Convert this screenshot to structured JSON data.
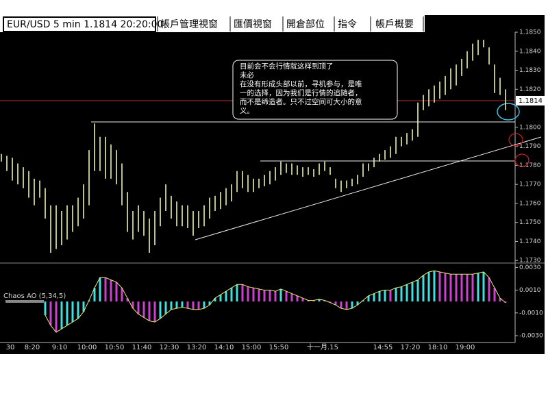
{
  "tabs": [
    "帳戶管理視窗",
    "匯價視窗",
    "開倉部位",
    "指令",
    "帳戶概要"
  ],
  "annotation": [
    "目前会不会行情就这样到顶了",
    "未必",
    "在没有形成头部以前，寻机参与，是唯",
    "一的选择，因为我们是行情的追随者，",
    "而不是缔造者。只不过空间可大小的意",
    "义。"
  ],
  "chart_data": [
    {
      "type": "hl",
      "title": "EUR/USD 5 min 1.1814 20:20:00",
      "color": "#f0f0a0",
      "categories": [
        null,
        "30",
        null,
        null,
        null,
        "8:20",
        null,
        null,
        null,
        null,
        "9:10",
        null,
        null,
        null,
        null,
        "10:00",
        null,
        null,
        null,
        null,
        "10:50",
        null,
        null,
        null,
        null,
        "11:40",
        null,
        null,
        null,
        null,
        "12:30",
        null,
        null,
        null,
        null,
        "13:20",
        null,
        null,
        null,
        null,
        "14:10",
        null,
        null,
        null,
        null,
        "15:00",
        null,
        null,
        null,
        null,
        "15:50",
        null,
        null,
        null,
        null,
        null,
        null,
        null,
        "十一月.15",
        null,
        null,
        null,
        null,
        null,
        null,
        null,
        null,
        null,
        null,
        "14:55",
        null,
        null,
        null,
        null,
        "17:20",
        null,
        null,
        null,
        null,
        "18:10",
        null,
        null,
        null,
        null,
        "19:00",
        null,
        null,
        null,
        null,
        null,
        null,
        null,
        null
      ],
      "high": [
        1.1786,
        1.1785,
        1.1784,
        1.1781,
        1.1779,
        1.1777,
        1.1773,
        1.1772,
        1.1768,
        1.1759,
        1.1759,
        1.1756,
        1.1759,
        1.1759,
        1.1763,
        1.177,
        1.1788,
        1.1802,
        1.1795,
        1.1795,
        1.1791,
        1.1788,
        1.1781,
        1.1766,
        1.1756,
        1.1759,
        1.1756,
        1.1752,
        1.1756,
        1.1763,
        1.177,
        1.1764,
        1.1761,
        1.1759,
        1.1759,
        1.1756,
        1.1756,
        1.1759,
        1.1763,
        1.1764,
        1.1766,
        1.1768,
        1.177,
        1.1777,
        1.1777,
        1.1775,
        1.1773,
        1.1773,
        1.1775,
        1.1777,
        1.1779,
        1.1782,
        1.1781,
        1.1781,
        1.178,
        1.1779,
        1.1779,
        1.1778,
        1.1781,
        1.1782,
        1.1779,
        1.1773,
        1.1772,
        1.1772,
        1.1773,
        1.1775,
        1.1781,
        1.1781,
        1.1784,
        1.1786,
        1.1788,
        1.179,
        1.1795,
        1.1795,
        1.1797,
        1.1799,
        1.1813,
        1.1817,
        1.182,
        1.1822,
        1.1824,
        1.1827,
        1.1831,
        1.1833,
        1.1836,
        1.184,
        1.1844,
        1.1846,
        1.1846,
        1.1842,
        1.1833,
        1.1826,
        1.182
      ],
      "low": [
        1.1782,
        1.1777,
        1.1772,
        1.177,
        1.1768,
        1.1763,
        1.1759,
        1.1763,
        1.1752,
        1.1734,
        1.1736,
        1.1738,
        1.1741,
        1.1745,
        1.1748,
        1.1752,
        1.1759,
        1.1777,
        1.1777,
        1.1773,
        1.1773,
        1.177,
        1.1759,
        1.1745,
        1.1741,
        1.1745,
        1.1743,
        1.1734,
        1.1738,
        1.1748,
        1.1756,
        1.1752,
        1.1748,
        1.1748,
        1.1747,
        1.1743,
        1.1747,
        1.1748,
        1.1752,
        1.1756,
        1.1757,
        1.1759,
        1.1761,
        1.1766,
        1.1768,
        1.1766,
        1.1766,
        1.1768,
        1.1769,
        1.177,
        1.1772,
        1.1775,
        1.1776,
        1.1775,
        1.1775,
        1.1774,
        1.1775,
        1.1774,
        1.1775,
        1.1777,
        1.1775,
        1.1768,
        1.1766,
        1.1768,
        1.1769,
        1.177,
        1.1774,
        1.1777,
        1.1779,
        1.1782,
        1.1783,
        1.1784,
        1.1786,
        1.179,
        1.1791,
        1.1793,
        1.1795,
        1.1809,
        1.1811,
        1.1813,
        1.1815,
        1.1817,
        1.182,
        1.1822,
        1.1827,
        1.1831,
        1.1835,
        1.1838,
        1.1842,
        1.1833,
        1.1818,
        1.1817,
        1.1809
      ],
      "current_price": 1.1814,
      "current_color": "#b03030",
      "ylim": [
        1.1729,
        1.185
      ],
      "yticks": [
        {
          "value": 1.185,
          "label": "1.1850"
        },
        {
          "value": 1.184,
          "label": "1.1840"
        },
        {
          "value": 1.183,
          "label": "1.1830"
        },
        {
          "value": 1.182,
          "label": "1.1820"
        },
        {
          "value": 1.18,
          "label": "1.1800"
        },
        {
          "value": 1.179,
          "label": "1.1790"
        },
        {
          "value": 1.178,
          "label": "1.1780"
        },
        {
          "value": 1.177,
          "label": "1.1770"
        },
        {
          "value": 1.176,
          "label": "1.1760"
        },
        {
          "value": 1.175,
          "label": "1.1750"
        },
        {
          "value": 1.174,
          "label": "1.1740"
        },
        {
          "value": 1.173,
          "label": "1.1730"
        }
      ]
    },
    {
      "type": "ao",
      "title": "Chaos AO (5,34,5)",
      "up_color": "#40e0e0",
      "down_color": "#d040d0",
      "line_color": "#e8e870",
      "values": [
        null,
        null,
        null,
        null,
        null,
        null,
        null,
        null,
        -0.0012,
        -0.0021,
        -0.0027,
        -0.0024,
        -0.0021,
        -0.0018,
        -0.0015,
        -0.0009,
        0.0001,
        0.0012,
        0.0021,
        0.0021,
        0.0019,
        0.0017,
        0.0012,
        0.0003,
        -0.0006,
        -0.0011,
        -0.0014,
        -0.0017,
        -0.0018,
        -0.0015,
        -0.0011,
        -0.0007,
        -0.0006,
        -0.0005,
        -0.0006,
        -0.0007,
        -0.0007,
        -0.0006,
        -0.0003,
        0.0003,
        0.0006,
        0.0009,
        0.0012,
        0.0015,
        0.0015,
        0.0013,
        0.0012,
        0.0011,
        0.001,
        0.001,
        0.0009,
        0.0011,
        0.0009,
        0.0007,
        0.0005,
        0.0003,
        0.0001,
        0.0001,
        0.0002,
        0.0001,
        -0.0001,
        -0.0003,
        -0.0006,
        -0.0007,
        -0.0006,
        -0.0003,
        0.0001,
        0.0005,
        0.0007,
        0.0009,
        0.001,
        0.001,
        0.0012,
        0.0013,
        0.0015,
        0.0017,
        0.0019,
        0.0023,
        0.0026,
        0.0027,
        0.0026,
        0.0025,
        0.0024,
        0.0024,
        0.0024,
        0.0024,
        0.0024,
        0.0025,
        0.0026,
        0.0021,
        0.0012,
        0.0003,
        -0.0001
      ],
      "ylim": [
        -0.0036,
        0.0032
      ],
      "yticks": [
        {
          "value": 0.003,
          "label": "0.0030"
        },
        {
          "value": 0.001,
          "label": "0.0010"
        },
        {
          "value": -0.001,
          "label": "-0.0010"
        },
        {
          "value": -0.003,
          "label": "-0.0030"
        }
      ]
    }
  ]
}
